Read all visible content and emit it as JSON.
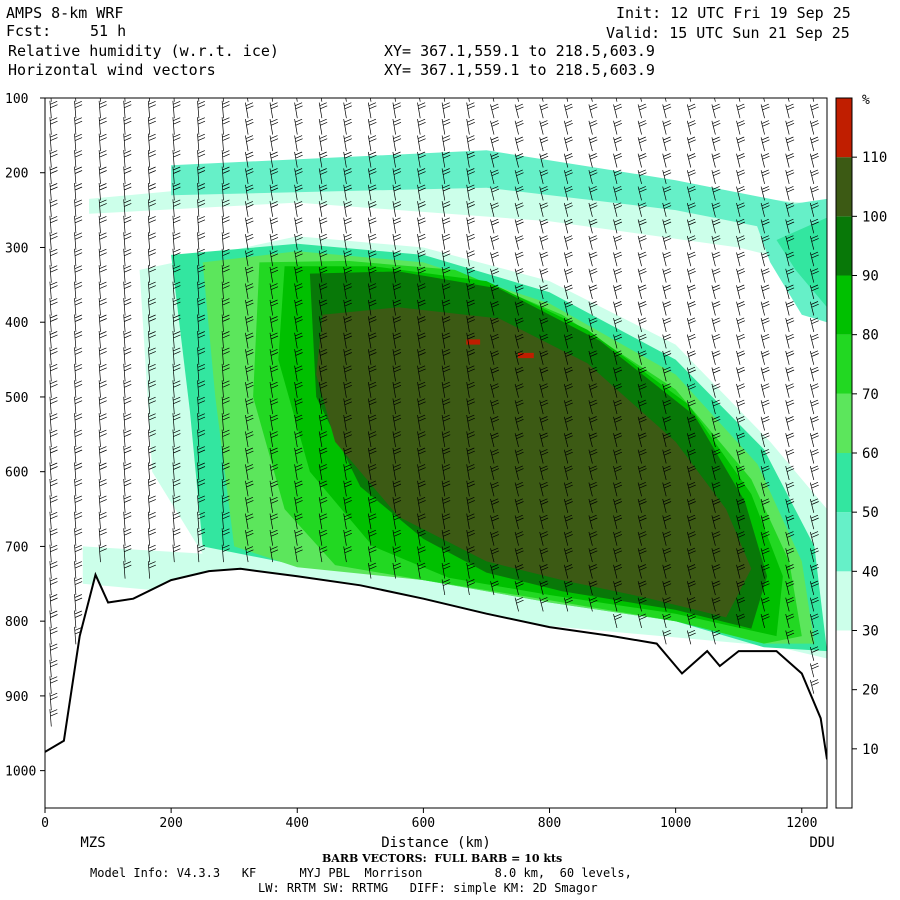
{
  "header": {
    "model": "AMPS 8-km WRF",
    "fcst_label": "Fcst:",
    "fcst_value": "51 h",
    "field1": "Relative humidity (w.r.t. ice)",
    "field2": "Horizontal wind vectors",
    "init": "Init: 12 UTC Fri 19 Sep 25",
    "valid": "Valid: 15 UTC Sun 21 Sep 25",
    "xy1": "XY= 367.1,559.1 to 218.5,603.9",
    "xy2": "XY= 367.1,559.1 to 218.5,603.9"
  },
  "footer": {
    "barb": "BARB VECTORS:  FULL BARB = 10 kts",
    "model_info": "Model Info: V4.3.3   KF      MYJ PBL  Morrison          8.0 km,  60 levels,",
    "model_info2": "LW: RRTM SW: RRTMG   DIFF: simple KM: 2D Smagor"
  },
  "chart_data": {
    "type": "heatmap",
    "title": "Relative humidity (w.r.t. ice)",
    "xlabel": "Distance (km)",
    "ylabel": "",
    "xlim": [
      0,
      1240
    ],
    "ylim": [
      1050,
      100
    ],
    "x_ticks": [
      0,
      200,
      400,
      600,
      800,
      1000,
      1200
    ],
    "y_ticks": [
      100,
      200,
      300,
      400,
      500,
      600,
      700,
      800,
      900,
      1000
    ],
    "endpoints": {
      "left": "MZS",
      "right": "DDU"
    },
    "colorbar": {
      "unit": "%",
      "ticks": [
        10,
        20,
        30,
        40,
        50,
        60,
        70,
        80,
        90,
        100,
        110
      ],
      "bins": [
        {
          "from": 0,
          "to": 30,
          "color": "#ffffff"
        },
        {
          "from": 30,
          "to": 40,
          "color": "#ccffea"
        },
        {
          "from": 40,
          "to": 50,
          "color": "#66f0c8"
        },
        {
          "from": 50,
          "to": 60,
          "color": "#33e6a0"
        },
        {
          "from": 60,
          "to": 70,
          "color": "#5ce65c"
        },
        {
          "from": 70,
          "to": 80,
          "color": "#22d822"
        },
        {
          "from": 80,
          "to": 90,
          "color": "#00c000"
        },
        {
          "from": 90,
          "to": 100,
          "color": "#087808"
        },
        {
          "from": 100,
          "to": 110,
          "color": "#3c5a14"
        },
        {
          "from": 110,
          "to": 120,
          "color": "#c01e00"
        }
      ]
    },
    "terrain_profile": [
      {
        "x": 0,
        "p": 975
      },
      {
        "x": 30,
        "p": 960
      },
      {
        "x": 55,
        "p": 820
      },
      {
        "x": 80,
        "p": 738
      },
      {
        "x": 100,
        "p": 775
      },
      {
        "x": 140,
        "p": 770
      },
      {
        "x": 200,
        "p": 745
      },
      {
        "x": 260,
        "p": 733
      },
      {
        "x": 310,
        "p": 730
      },
      {
        "x": 400,
        "p": 740
      },
      {
        "x": 500,
        "p": 752
      },
      {
        "x": 600,
        "p": 770
      },
      {
        "x": 700,
        "p": 790
      },
      {
        "x": 800,
        "p": 808
      },
      {
        "x": 900,
        "p": 820
      },
      {
        "x": 970,
        "p": 830
      },
      {
        "x": 1010,
        "p": 870
      },
      {
        "x": 1050,
        "p": 840
      },
      {
        "x": 1070,
        "p": 860
      },
      {
        "x": 1100,
        "p": 840
      },
      {
        "x": 1160,
        "p": 840
      },
      {
        "x": 1200,
        "p": 870
      },
      {
        "x": 1230,
        "p": 930
      },
      {
        "x": 1240,
        "p": 985
      }
    ],
    "rh_regions": [
      {
        "level": 35,
        "points": [
          [
            60,
            700
          ],
          [
            1240,
            760
          ],
          [
            1240,
            840
          ],
          [
            60,
            750
          ]
        ]
      },
      {
        "level": 35,
        "points": [
          [
            70,
            235
          ],
          [
            450,
            205
          ],
          [
            900,
            215
          ],
          [
            1200,
            240
          ],
          [
            1240,
            260
          ],
          [
            1240,
            330
          ],
          [
            1100,
            300
          ],
          [
            800,
            265
          ],
          [
            400,
            240
          ],
          [
            70,
            255
          ]
        ]
      },
      {
        "level": 45,
        "points": [
          [
            200,
            190
          ],
          [
            700,
            170
          ],
          [
            1000,
            210
          ],
          [
            1240,
            250
          ],
          [
            1240,
            290
          ],
          [
            1000,
            250
          ],
          [
            700,
            220
          ],
          [
            200,
            230
          ]
        ]
      },
      {
        "level": 45,
        "points": [
          [
            1120,
            250
          ],
          [
            1240,
            235
          ],
          [
            1240,
            400
          ],
          [
            1200,
            390
          ],
          [
            1150,
            320
          ]
        ]
      },
      {
        "level": 55,
        "points": [
          [
            1160,
            290
          ],
          [
            1240,
            260
          ],
          [
            1240,
            380
          ],
          [
            1190,
            330
          ]
        ]
      },
      {
        "level": 35,
        "points": [
          [
            150,
            330
          ],
          [
            400,
            285
          ],
          [
            600,
            300
          ],
          [
            800,
            345
          ],
          [
            1000,
            430
          ],
          [
            1150,
            560
          ],
          [
            1240,
            650
          ],
          [
            1240,
            850
          ],
          [
            1140,
            830
          ],
          [
            1000,
            790
          ],
          [
            800,
            770
          ],
          [
            600,
            740
          ],
          [
            400,
            720
          ],
          [
            250,
            710
          ],
          [
            170,
            600
          ]
        ]
      },
      {
        "level": 55,
        "points": [
          [
            200,
            310
          ],
          [
            400,
            295
          ],
          [
            600,
            310
          ],
          [
            800,
            360
          ],
          [
            1000,
            450
          ],
          [
            1140,
            570
          ],
          [
            1220,
            700
          ],
          [
            1240,
            840
          ],
          [
            1140,
            835
          ],
          [
            1000,
            800
          ],
          [
            800,
            775
          ],
          [
            600,
            745
          ],
          [
            400,
            725
          ],
          [
            250,
            700
          ],
          [
            230,
            520
          ]
        ]
      },
      {
        "level": 65,
        "points": [
          [
            250,
            320
          ],
          [
            400,
            305
          ],
          [
            600,
            320
          ],
          [
            800,
            375
          ],
          [
            1000,
            470
          ],
          [
            1130,
            590
          ],
          [
            1200,
            720
          ],
          [
            1220,
            830
          ],
          [
            1140,
            830
          ],
          [
            1000,
            800
          ],
          [
            800,
            775
          ],
          [
            600,
            745
          ],
          [
            400,
            728
          ],
          [
            300,
            700
          ],
          [
            270,
            500
          ]
        ]
      },
      {
        "level": 75,
        "points": [
          [
            340,
            320
          ],
          [
            480,
            318
          ],
          [
            650,
            330
          ],
          [
            820,
            390
          ],
          [
            1000,
            490
          ],
          [
            1120,
            610
          ],
          [
            1180,
            720
          ],
          [
            1200,
            820
          ],
          [
            1140,
            830
          ],
          [
            1000,
            800
          ],
          [
            800,
            772
          ],
          [
            600,
            745
          ],
          [
            460,
            725
          ],
          [
            380,
            650
          ],
          [
            330,
            500
          ]
        ]
      },
      {
        "level": 85,
        "points": [
          [
            380,
            325
          ],
          [
            520,
            325
          ],
          [
            700,
            345
          ],
          [
            860,
            410
          ],
          [
            1020,
            510
          ],
          [
            1120,
            630
          ],
          [
            1170,
            740
          ],
          [
            1160,
            820
          ],
          [
            1000,
            790
          ],
          [
            800,
            765
          ],
          [
            640,
            742
          ],
          [
            520,
            700
          ],
          [
            420,
            600
          ],
          [
            370,
            450
          ]
        ]
      },
      {
        "level": 95,
        "points": [
          [
            420,
            335
          ],
          [
            560,
            332
          ],
          [
            720,
            355
          ],
          [
            880,
            425
          ],
          [
            1030,
            525
          ],
          [
            1110,
            640
          ],
          [
            1145,
            740
          ],
          [
            1120,
            810
          ],
          [
            1000,
            785
          ],
          [
            820,
            760
          ],
          [
            700,
            735
          ],
          [
            600,
            690
          ],
          [
            500,
            620
          ],
          [
            430,
            500
          ]
        ]
      },
      {
        "level": 105,
        "points": [
          [
            440,
            390
          ],
          [
            560,
            380
          ],
          [
            720,
            395
          ],
          [
            860,
            455
          ],
          [
            1000,
            560
          ],
          [
            1080,
            650
          ],
          [
            1120,
            730
          ],
          [
            1080,
            795
          ],
          [
            960,
            770
          ],
          [
            820,
            745
          ],
          [
            700,
            720
          ],
          [
            560,
            660
          ],
          [
            460,
            560
          ],
          [
            430,
            470
          ]
        ]
      },
      {
        "level": 115,
        "points": [
          [
            668,
            423
          ],
          [
            690,
            423
          ],
          [
            690,
            430
          ],
          [
            668,
            430
          ]
        ]
      },
      {
        "level": 115,
        "points": [
          [
            750,
            441
          ],
          [
            775,
            441
          ],
          [
            775,
            448
          ],
          [
            750,
            448
          ]
        ]
      }
    ]
  }
}
